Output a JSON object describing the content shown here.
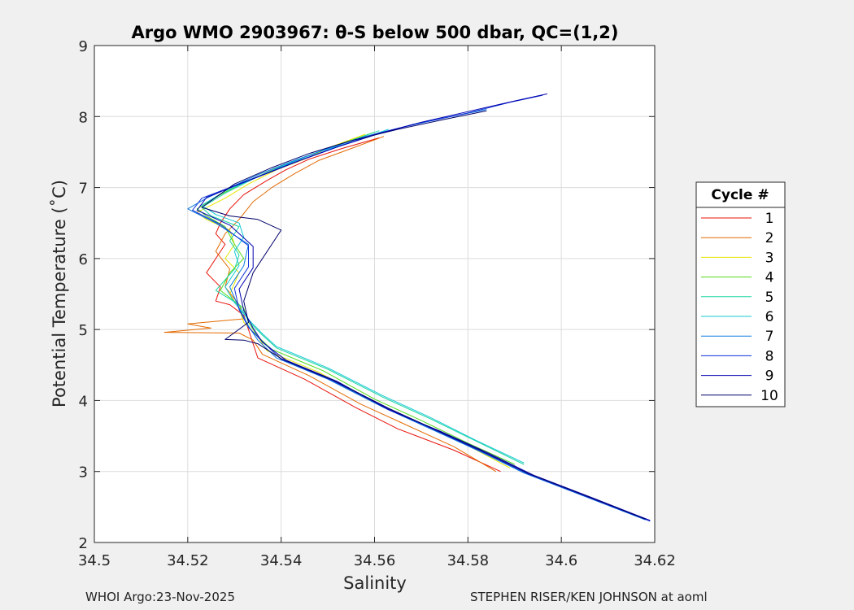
{
  "chart_data": {
    "type": "line",
    "title": "Argo WMO 2903967: θ-S below 500 dbar,  QC=(1,2)",
    "xlabel": "Salinity",
    "ylabel": "Potential Temperature (˚C)",
    "xlim": [
      34.5,
      34.62
    ],
    "ylim": [
      2,
      9
    ],
    "xticks": [
      "34.5",
      "34.52",
      "34.54",
      "34.56",
      "34.58",
      "34.6",
      "34.62"
    ],
    "yticks": [
      "2",
      "3",
      "4",
      "5",
      "6",
      "7",
      "8",
      "9"
    ],
    "grid": true,
    "legend_title": "Cycle #",
    "legend_position": "right",
    "series": [
      {
        "name": "1",
        "color": "#e8120a",
        "x": [
          34.587,
          34.577,
          34.565,
          34.556,
          34.545,
          34.535,
          34.534,
          34.533,
          34.532,
          34.529,
          34.526,
          34.527,
          34.524,
          34.526,
          34.528,
          34.526,
          34.527,
          34.529,
          34.532,
          34.537,
          34.541,
          34.546,
          34.553,
          34.561
        ],
        "y": [
          3.0,
          3.3,
          3.6,
          3.9,
          4.3,
          4.6,
          4.8,
          5.0,
          5.2,
          5.35,
          5.4,
          5.6,
          5.8,
          6.0,
          6.2,
          6.35,
          6.5,
          6.7,
          6.9,
          7.1,
          7.25,
          7.4,
          7.55,
          7.7
        ]
      },
      {
        "name": "2",
        "color": "#e36a00",
        "x": [
          34.586,
          34.577,
          34.567,
          34.557,
          34.546,
          34.536,
          34.534,
          34.531,
          34.515,
          34.525,
          34.52,
          34.532,
          34.531,
          34.528,
          34.529,
          34.526,
          34.528,
          34.531,
          34.534,
          34.538,
          34.543,
          34.548,
          34.555,
          34.562
        ],
        "y": [
          3.0,
          3.35,
          3.65,
          3.95,
          4.35,
          4.65,
          4.85,
          4.95,
          4.96,
          5.02,
          5.08,
          5.15,
          5.35,
          5.6,
          5.85,
          6.1,
          6.35,
          6.55,
          6.8,
          7.0,
          7.2,
          7.38,
          7.55,
          7.72
        ]
      },
      {
        "name": "3",
        "color": "#e6e600",
        "x": [
          34.589,
          34.579,
          34.569,
          34.559,
          34.548,
          34.537,
          34.535,
          34.532,
          34.531,
          34.529,
          34.531,
          34.528,
          34.53,
          34.529,
          34.524,
          34.522,
          34.528,
          34.533,
          34.539,
          34.545,
          34.551,
          34.558
        ],
        "y": [
          3.05,
          3.4,
          3.7,
          4.0,
          4.4,
          4.7,
          4.9,
          5.1,
          5.3,
          5.5,
          5.8,
          6.0,
          6.2,
          6.4,
          6.55,
          6.65,
          6.85,
          7.05,
          7.25,
          7.4,
          7.58,
          7.75
        ]
      },
      {
        "name": "4",
        "color": "#52d91a",
        "x": [
          34.59,
          34.58,
          34.57,
          34.56,
          34.549,
          34.538,
          34.535,
          34.533,
          34.532,
          34.527,
          34.529,
          34.532,
          34.53,
          34.528,
          34.524,
          34.522,
          34.527,
          34.533,
          34.54,
          34.546,
          34.553,
          34.56
        ],
        "y": [
          3.1,
          3.4,
          3.72,
          4.02,
          4.42,
          4.72,
          4.9,
          5.1,
          5.3,
          5.55,
          5.8,
          6.0,
          6.2,
          6.45,
          6.6,
          6.7,
          6.9,
          7.1,
          7.3,
          7.45,
          7.62,
          7.78
        ]
      },
      {
        "name": "5",
        "color": "#1ad6a0",
        "x": [
          34.592,
          34.582,
          34.572,
          34.562,
          34.55,
          34.539,
          34.536,
          34.533,
          34.531,
          34.526,
          34.53,
          34.531,
          34.529,
          34.531,
          34.525,
          34.523,
          34.528,
          34.534,
          34.541,
          34.547,
          34.554,
          34.561
        ],
        "y": [
          3.1,
          3.42,
          3.74,
          4.04,
          4.44,
          4.74,
          4.92,
          5.12,
          5.35,
          5.55,
          5.85,
          6.05,
          6.25,
          6.45,
          6.6,
          6.72,
          6.92,
          7.12,
          7.32,
          7.48,
          7.64,
          7.8
        ]
      },
      {
        "name": "6",
        "color": "#14c8d6",
        "x": [
          34.592,
          34.582,
          34.572,
          34.562,
          34.55,
          34.539,
          34.536,
          34.533,
          34.53,
          34.528,
          34.531,
          34.53,
          34.532,
          34.531,
          34.526,
          34.523,
          34.528,
          34.535,
          34.542,
          34.548,
          34.556,
          34.563
        ],
        "y": [
          3.12,
          3.43,
          3.76,
          4.06,
          4.46,
          4.76,
          4.94,
          5.14,
          5.38,
          5.6,
          5.9,
          6.1,
          6.3,
          6.5,
          6.62,
          6.75,
          6.95,
          7.15,
          7.35,
          7.5,
          7.66,
          7.82
        ]
      },
      {
        "name": "7",
        "color": "#0a7be0",
        "x": [
          34.618,
          34.605,
          34.592,
          34.582,
          34.572,
          34.562,
          34.55,
          34.539,
          34.535,
          34.533,
          34.531,
          34.529,
          34.532,
          34.533,
          34.526,
          34.52,
          34.524,
          34.529,
          34.535,
          34.542,
          34.55,
          34.558,
          34.566,
          34.575,
          34.584
        ],
        "y": [
          2.32,
          2.65,
          2.98,
          3.3,
          3.6,
          3.9,
          4.3,
          4.6,
          4.85,
          5.05,
          5.3,
          5.6,
          5.9,
          6.2,
          6.5,
          6.7,
          6.85,
          7.0,
          7.18,
          7.36,
          7.55,
          7.72,
          7.85,
          7.98,
          8.1
        ]
      },
      {
        "name": "8",
        "color": "#1030d8",
        "x": [
          34.619,
          34.606,
          34.593,
          34.583,
          34.573,
          34.563,
          34.551,
          34.54,
          34.536,
          34.533,
          34.531,
          34.53,
          34.533,
          34.533,
          34.527,
          34.521,
          34.523,
          34.529,
          34.536,
          34.543,
          34.551,
          34.56,
          34.569,
          34.58,
          34.589,
          34.596
        ],
        "y": [
          2.3,
          2.63,
          2.96,
          3.28,
          3.58,
          3.88,
          4.28,
          4.58,
          4.83,
          5.03,
          5.28,
          5.58,
          5.88,
          6.18,
          6.48,
          6.68,
          6.85,
          7.0,
          7.18,
          7.36,
          7.55,
          7.75,
          7.9,
          8.05,
          8.2,
          8.3
        ]
      },
      {
        "name": "9",
        "color": "#0000b0",
        "x": [
          34.619,
          34.607,
          34.594,
          34.584,
          34.574,
          34.563,
          34.552,
          34.541,
          34.536,
          34.534,
          34.532,
          34.531,
          34.534,
          34.534,
          34.529,
          34.522,
          34.524,
          34.53,
          34.537,
          34.544,
          34.552,
          34.561,
          34.57,
          34.58,
          34.59,
          34.597
        ],
        "y": [
          2.31,
          2.62,
          2.95,
          3.27,
          3.57,
          3.87,
          4.27,
          4.57,
          4.82,
          5.02,
          5.27,
          5.57,
          5.87,
          6.17,
          6.47,
          6.68,
          6.86,
          7.02,
          7.2,
          7.38,
          7.57,
          7.76,
          7.92,
          8.07,
          8.22,
          8.32
        ]
      },
      {
        "name": "10",
        "color": "#00006a",
        "x": [
          34.618,
          34.606,
          34.593,
          34.583,
          34.573,
          34.563,
          34.551,
          34.54,
          34.535,
          34.532,
          34.528,
          34.533,
          34.532,
          34.534,
          34.54,
          34.535,
          34.529,
          34.523,
          34.53,
          34.538,
          34.546,
          34.555,
          34.565,
          34.575,
          34.584
        ],
        "y": [
          2.33,
          2.64,
          2.97,
          3.29,
          3.59,
          3.89,
          4.29,
          4.59,
          4.8,
          4.85,
          4.86,
          5.1,
          5.4,
          5.8,
          6.4,
          6.55,
          6.6,
          6.72,
          7.05,
          7.28,
          7.48,
          7.66,
          7.82,
          7.96,
          8.08
        ]
      }
    ]
  },
  "footer": {
    "left": "WHOI Argo:23-Nov-2025",
    "right": "STEPHEN RISER/KEN JOHNSON at aoml"
  }
}
